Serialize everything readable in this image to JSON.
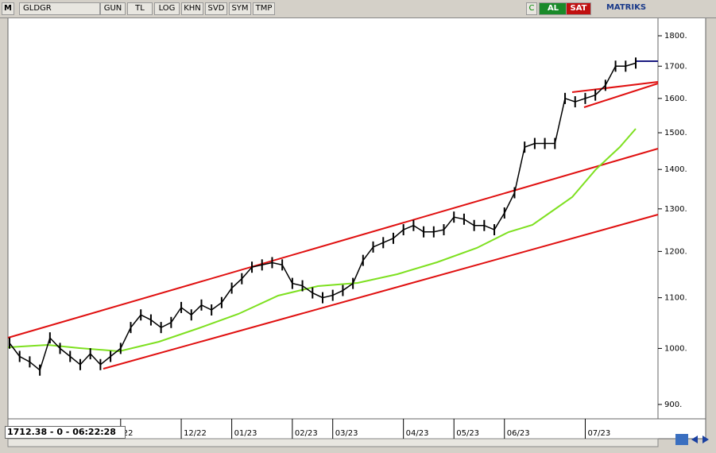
{
  "toolbar": {
    "logo": "M",
    "symbol": "GLDGR",
    "buttons": [
      "GUN",
      "TL",
      "LOG",
      "KHN",
      "SVD",
      "SYM",
      "TMP"
    ],
    "status_c": "C",
    "buy": "AL",
    "sell": "SAT",
    "brand": "MATRIKS"
  },
  "status": "1712.38 - 0 - 06:22:28",
  "chart_data": {
    "type": "line",
    "log": true,
    "color": "#000000",
    "categories": [
      null,
      null,
      null,
      null,
      null,
      null,
      null,
      null,
      null,
      null,
      null,
      "22",
      null,
      null,
      null,
      null,
      null,
      "12/22",
      null,
      null,
      null,
      null,
      "01/23",
      null,
      null,
      null,
      null,
      null,
      "02/23",
      null,
      null,
      null,
      "03/23",
      null,
      null,
      null,
      null,
      null,
      null,
      "04/23",
      null,
      null,
      null,
      null,
      "05/23",
      null,
      null,
      null,
      null,
      "06/23",
      null,
      null,
      null,
      null,
      null,
      null,
      null,
      "07/23",
      null,
      null,
      null,
      null,
      null
    ],
    "values": [
      1010,
      985,
      975,
      960,
      1020,
      1000,
      985,
      970,
      990,
      970,
      985,
      1000,
      1040,
      1065,
      1055,
      1040,
      1050,
      1080,
      1065,
      1085,
      1075,
      1090,
      1120,
      1140,
      1165,
      1170,
      1175,
      1170,
      1130,
      1125,
      1110,
      1100,
      1105,
      1115,
      1130,
      1180,
      1210,
      1220,
      1230,
      1250,
      1260,
      1245,
      1245,
      1250,
      1280,
      1275,
      1260,
      1260,
      1250,
      1290,
      1340,
      1460,
      1470,
      1470,
      1470,
      1600,
      1590,
      1600,
      1610,
      1640,
      1700,
      1700,
      1710
    ],
    "ylim": [
      876,
      1863
    ],
    "yticks": [
      {
        "value": 900,
        "label": "900."
      },
      {
        "value": 1000,
        "label": "1000."
      },
      {
        "value": 1100,
        "label": "1100."
      },
      {
        "value": 1200,
        "label": "1200."
      },
      {
        "value": 1300,
        "label": "1300."
      },
      {
        "value": 1400,
        "label": "1400."
      },
      {
        "value": 1500,
        "label": "1500."
      },
      {
        "value": 1600,
        "label": "1600."
      },
      {
        "value": 1700,
        "label": "1700."
      },
      {
        "value": 1800,
        "label": "1800."
      }
    ]
  }
}
